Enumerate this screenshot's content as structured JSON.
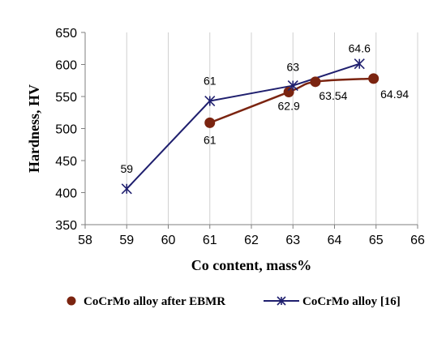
{
  "chart_data": {
    "type": "line",
    "title": "",
    "xlabel": "Co content, mass%",
    "ylabel": "Hardness, HV",
    "xlim": [
      58,
      66
    ],
    "ylim": [
      350,
      650
    ],
    "xticks": [
      58,
      59,
      60,
      61,
      62,
      63,
      64,
      65,
      66
    ],
    "yticks": [
      350,
      400,
      450,
      500,
      550,
      600,
      650
    ],
    "grid": "vertical gridlines",
    "legend_position": "bottom",
    "series": [
      {
        "name": "CoCrMo alloy after EBMR",
        "color": "#7b2410",
        "marker": "filled-circle",
        "line": "smooth",
        "points": [
          {
            "x": 61,
            "y": 509,
            "label": "61"
          },
          {
            "x": 62.9,
            "y": 557,
            "label": "62.9"
          },
          {
            "x": 63.54,
            "y": 573,
            "label": "63.54"
          },
          {
            "x": 64.94,
            "y": 578,
            "label": "64.94"
          }
        ]
      },
      {
        "name": "CoCrMo alloy [16]",
        "color": "#1f1f6e",
        "marker": "star-cross",
        "line": "straight",
        "points": [
          {
            "x": 59,
            "y": 406,
            "label": "59"
          },
          {
            "x": 61,
            "y": 543,
            "label": "61"
          },
          {
            "x": 63,
            "y": 567,
            "label": "63"
          },
          {
            "x": 64.6,
            "y": 601,
            "label": "64.6"
          }
        ]
      }
    ]
  }
}
